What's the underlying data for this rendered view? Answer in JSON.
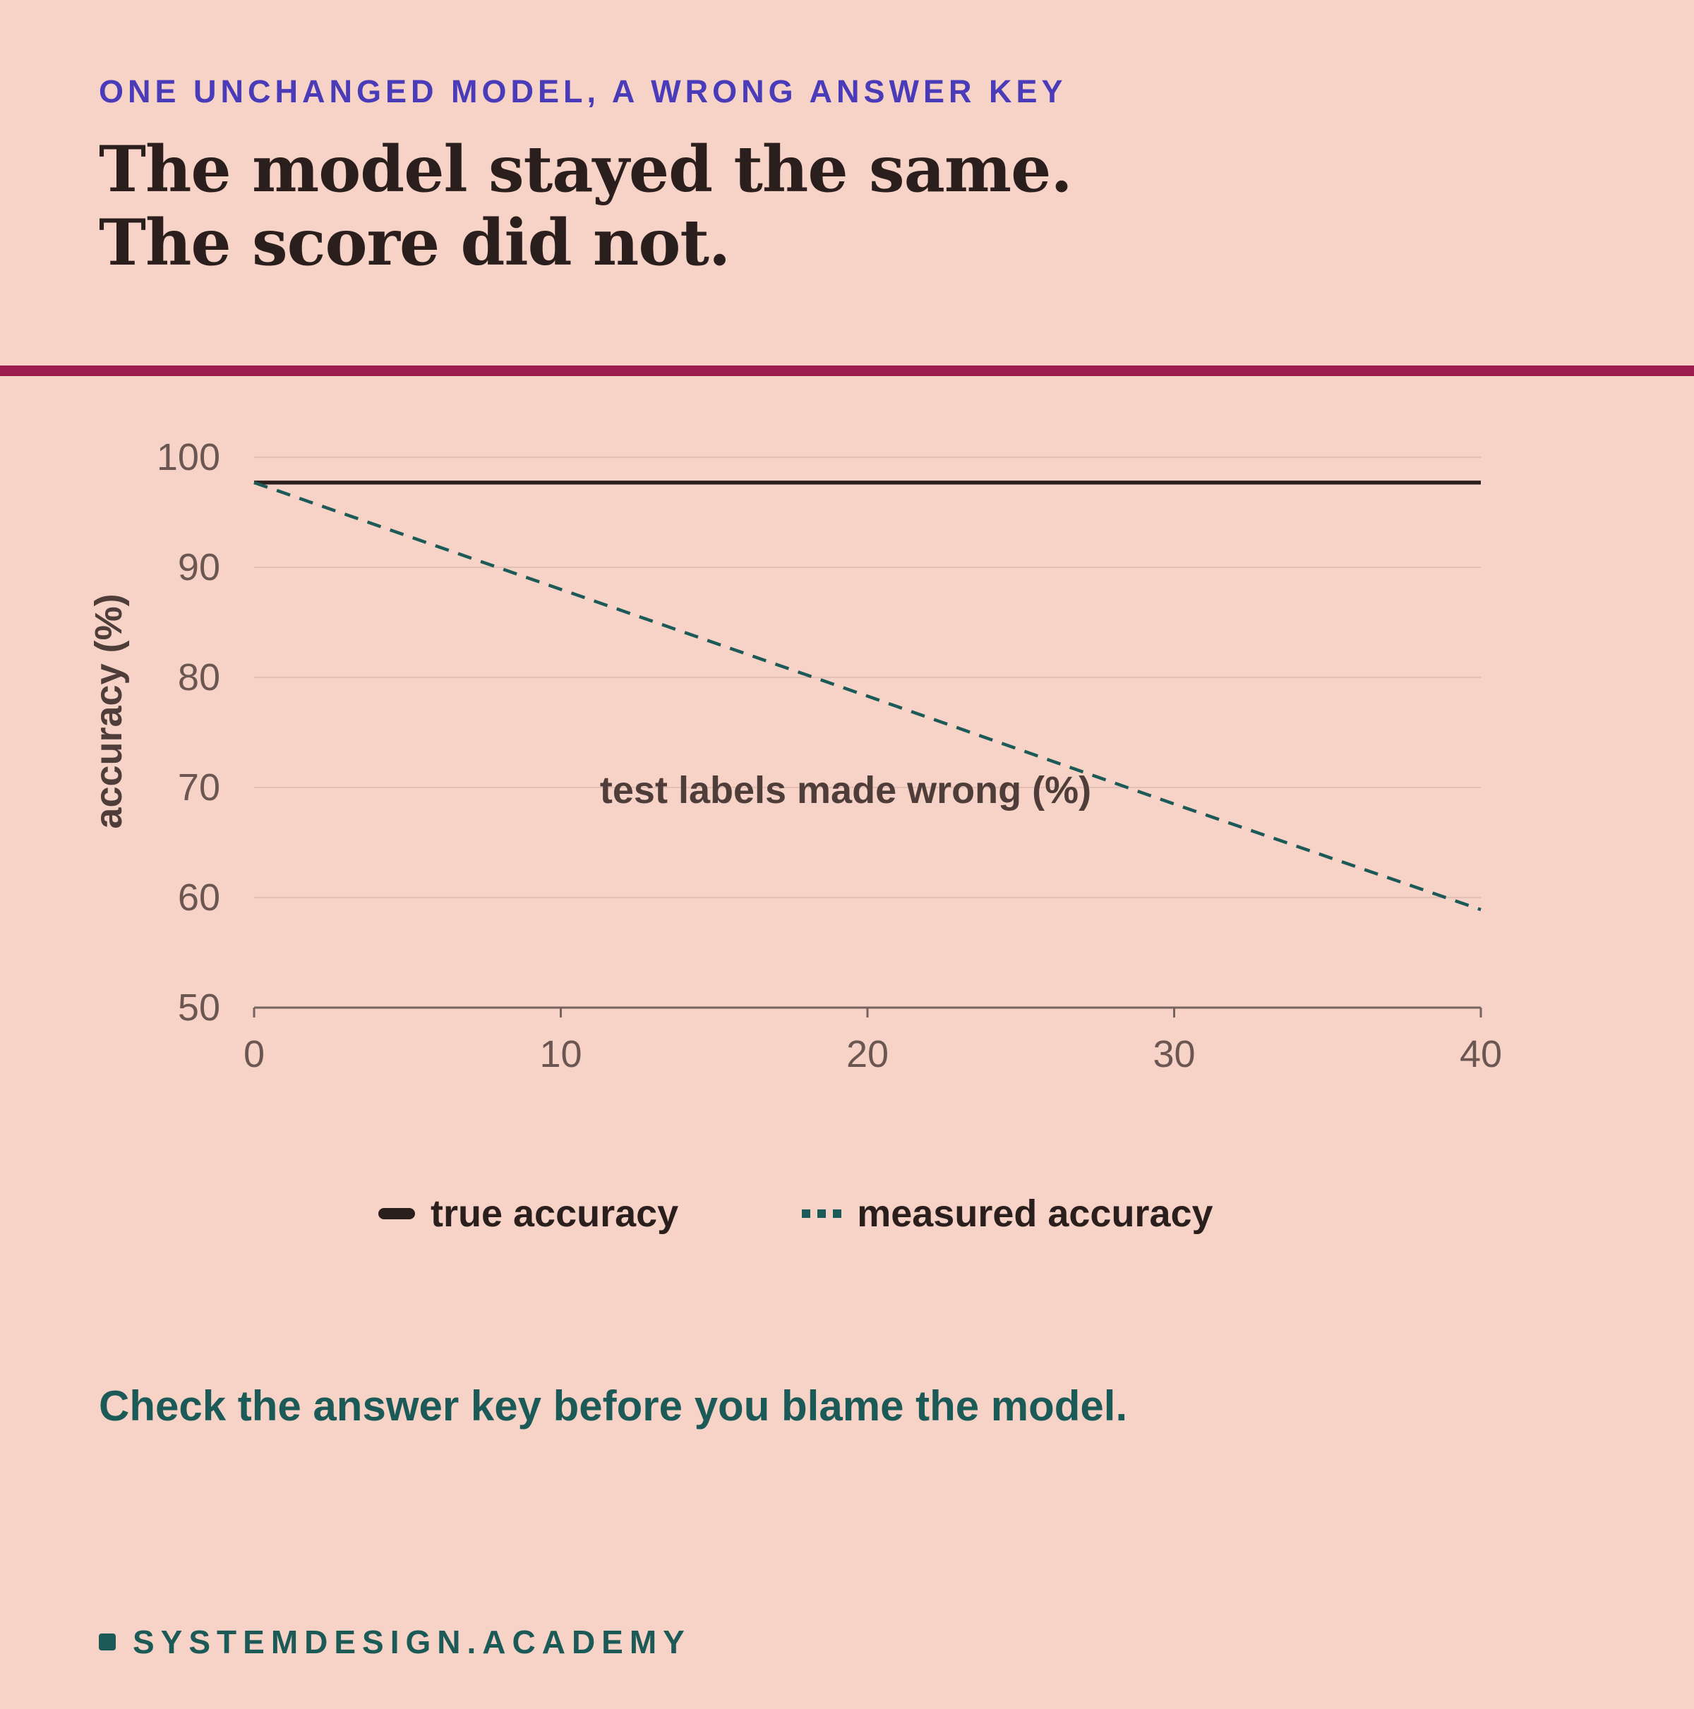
{
  "eyebrow": "ONE UNCHANGED MODEL, A WRONG ANSWER KEY",
  "headline": "The model stayed the same. The score did not.",
  "takeaway": "Check the answer key before you blame the model.",
  "footer": {
    "brand": "SYSTEMDESIGN.ACADEMY"
  },
  "colors": {
    "background": "#f6d2c7",
    "eyebrow": "#4a3bb8",
    "rule": "#9b1d4e",
    "true_line": "#2b1f1d",
    "measured_line": "#1b5a57",
    "axis": "#75635e",
    "grid": "#e4bfb5",
    "tick_text": "#6b5652",
    "axis_label": "#4e3d39",
    "takeaway": "#1b5a57",
    "footer": "#1b5a57"
  },
  "chart_data": {
    "type": "line",
    "xlabel": "test labels made wrong (%)",
    "ylabel": "accuracy (%)",
    "xlim": [
      0,
      40
    ],
    "ylim": [
      50,
      100
    ],
    "xticks": [
      0,
      10,
      20,
      30,
      40
    ],
    "yticks": [
      50,
      60,
      70,
      80,
      90,
      100
    ],
    "grid": true,
    "legend": "bottom",
    "series": [
      {
        "name": "true accuracy",
        "style": "solid",
        "x": [
          0,
          40
        ],
        "y": [
          97.7,
          97.7
        ]
      },
      {
        "name": "measured accuracy",
        "style": "dashed",
        "x": [
          0,
          10,
          20,
          30,
          40
        ],
        "y": [
          97.7,
          88.0,
          78.3,
          68.5,
          58.9
        ]
      }
    ]
  }
}
